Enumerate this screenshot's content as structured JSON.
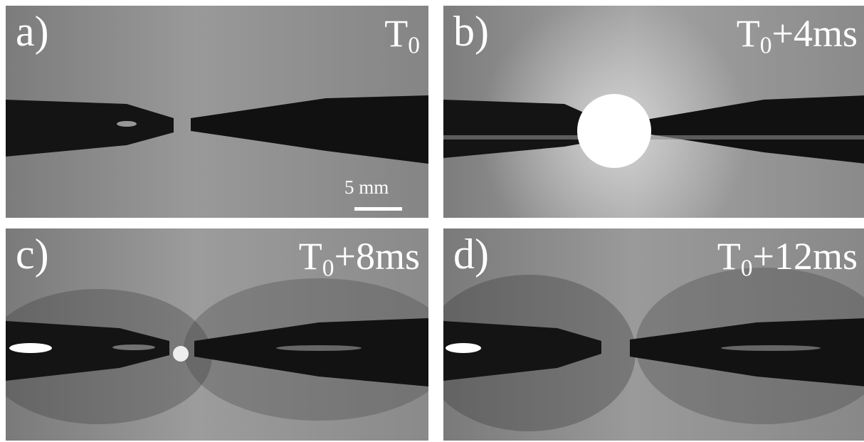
{
  "panels": [
    {
      "label": "a)",
      "time_base": "T",
      "time_sub": "0",
      "time_suffix": ""
    },
    {
      "label": "b)",
      "time_base": "T",
      "time_sub": "0",
      "time_suffix": "+4ms"
    },
    {
      "label": "c)",
      "time_base": "T",
      "time_sub": "0",
      "time_suffix": "+8ms"
    },
    {
      "label": "d)",
      "time_base": "T",
      "time_sub": "0",
      "time_suffix": "+12ms"
    }
  ],
  "scale_bar": {
    "label": "5 mm"
  },
  "colors": {
    "text": "#ffffff",
    "electrode": "#141414",
    "background": "#8a8a8a",
    "flash": "#ffffff"
  }
}
